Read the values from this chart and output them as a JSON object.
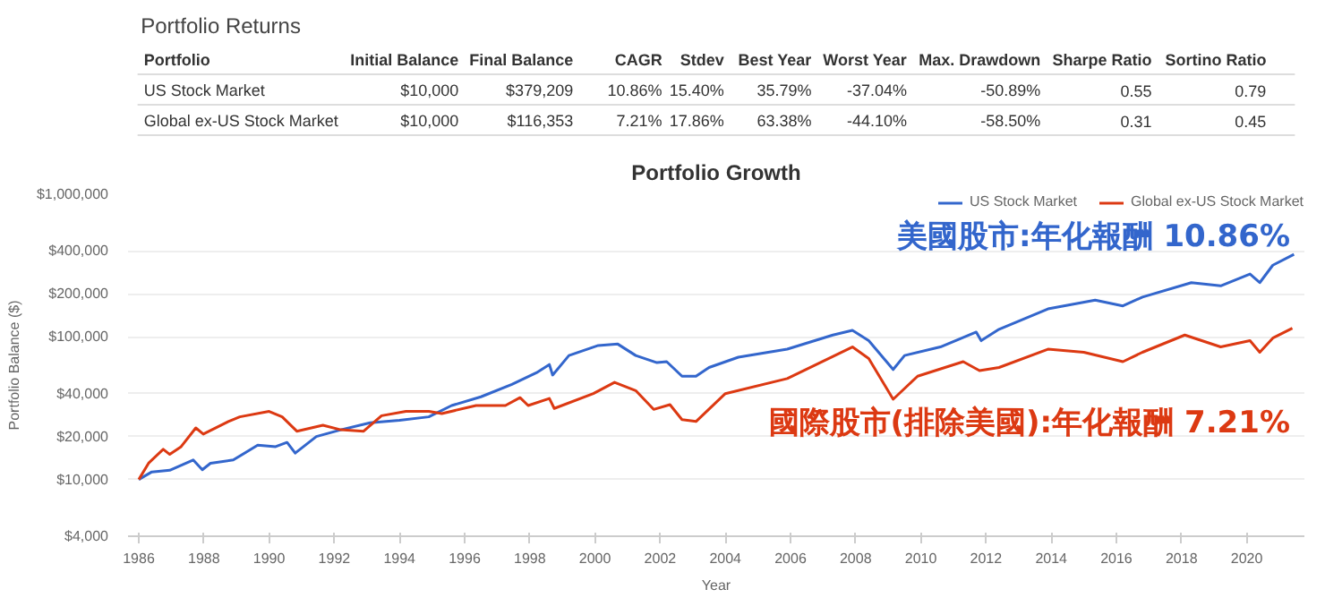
{
  "chart_data": [
    {
      "type": "other",
      "title": "Portfolio Returns",
      "annotations": [
        "Portfolio",
        "Initial Balance",
        "Final Balance",
        "CAGR",
        "Stdev",
        "Best Year",
        "Worst Year",
        "Max. Drawdown",
        "Sharpe Ratio",
        "Sortino Ratio",
        "US Stock Market",
        "$10,000",
        "$379,209",
        "10.86%",
        "15.40%",
        "35.79%",
        "-37.04%",
        "-50.89%",
        "0.55",
        "0.79",
        "Global ex-US Stock Market",
        "$10,000",
        "$116,353",
        "7.21%",
        "17.86%",
        "63.38%",
        "-44.10%",
        "-58.50%",
        "0.31",
        "0.45"
      ]
    },
    {
      "type": "line",
      "title": "Portfolio Growth",
      "xlabel": "Year",
      "ylabel": "Portfolio Balance ($)",
      "log": "y",
      "grid": "y",
      "legend": "top right",
      "xlim": [
        1985.67,
        2021.77
      ],
      "xticks": [
        1986,
        1988,
        1990,
        1992,
        1994,
        1996,
        1998,
        2000,
        2002,
        2004,
        2006,
        2008,
        2010,
        2012,
        2014,
        2016,
        2018,
        2020
      ],
      "ylim": [
        4000,
        1000000
      ],
      "yticks": [
        {
          "value": 4000,
          "label": "$4,000"
        },
        {
          "value": 10000,
          "label": "$10,000"
        },
        {
          "value": 20000,
          "label": "$20,000"
        },
        {
          "value": 40000,
          "label": "$40,000"
        },
        {
          "value": 100000,
          "label": "$100,000"
        },
        {
          "value": 200000,
          "label": "$200,000"
        },
        {
          "value": 400000,
          "label": "$400,000"
        },
        {
          "value": 1000000,
          "label": "$1,000,000"
        }
      ],
      "annotations": [
        "美國股市:年化報酬 10.86%",
        "國際股市(排除美國):年化報酬 7.21%"
      ],
      "series": [
        {
          "name": "US Stock Market",
          "color": "#3366cc",
          "x": [
            1986.0,
            1986.4,
            1986.95,
            1987.67,
            1987.95,
            1988.2,
            1988.9,
            1989.65,
            1990.2,
            1990.55,
            1990.8,
            1991.45,
            1992.2,
            1993.1,
            1994.0,
            1994.9,
            1995.6,
            1996.5,
            1997.45,
            1998.2,
            1998.6,
            1998.7,
            1999.2,
            2000.1,
            2000.7,
            2001.25,
            2001.9,
            2002.2,
            2002.67,
            2003.1,
            2003.5,
            2004.4,
            2005.9,
            2007.3,
            2007.9,
            2008.4,
            2009.15,
            2009.5,
            2010.6,
            2011.7,
            2011.85,
            2012.4,
            2013.9,
            2015.35,
            2016.2,
            2016.8,
            2018.3,
            2019.2,
            2020.1,
            2020.4,
            2020.8,
            2021.45
          ],
          "values": [
            10000,
            11300,
            11600,
            13700,
            11700,
            13000,
            13700,
            17400,
            17000,
            18200,
            15300,
            20000,
            22300,
            25000,
            26000,
            27500,
            33000,
            38000,
            46500,
            56000,
            64000,
            54000,
            74000,
            87000,
            89000,
            74000,
            66000,
            67000,
            53000,
            53000,
            61000,
            72000,
            82000,
            103000,
            111000,
            94000,
            59000,
            74000,
            85000,
            108000,
            94000,
            113000,
            157000,
            181000,
            165000,
            190000,
            240000,
            228000,
            276000,
            240000,
            318000,
            379000
          ]
        },
        {
          "name": "Global ex-US Stock Market",
          "color": "#dc3912",
          "x": [
            1986.0,
            1986.3,
            1986.75,
            1986.95,
            1987.3,
            1987.75,
            1987.98,
            1988.75,
            1989.1,
            1990.0,
            1990.4,
            1990.85,
            1991.65,
            1992.2,
            1992.9,
            1993.45,
            1994.2,
            1994.9,
            1995.3,
            1996.35,
            1997.25,
            1997.7,
            1997.95,
            1998.6,
            1998.75,
            1999.95,
            2000.6,
            2001.25,
            2001.8,
            2002.3,
            2002.67,
            2003.1,
            2004.0,
            2005.9,
            2007.9,
            2008.4,
            2009.15,
            2009.9,
            2011.3,
            2011.8,
            2012.4,
            2013.9,
            2015.0,
            2016.2,
            2016.8,
            2018.1,
            2019.2,
            2020.1,
            2020.4,
            2020.8,
            2021.4
          ],
          "values": [
            10000,
            13000,
            16300,
            15000,
            17000,
            23000,
            20800,
            25500,
            27500,
            30000,
            27500,
            21800,
            24000,
            22300,
            21800,
            28000,
            30000,
            30000,
            29000,
            33000,
            33000,
            37500,
            33000,
            37000,
            31500,
            40000,
            48000,
            42000,
            31000,
            33500,
            26300,
            25500,
            40000,
            51000,
            85000,
            70500,
            36500,
            53000,
            67000,
            58000,
            61000,
            82000,
            78000,
            67000,
            78000,
            103000,
            85000,
            94000,
            78000,
            98000,
            115000
          ]
        }
      ]
    }
  ]
}
